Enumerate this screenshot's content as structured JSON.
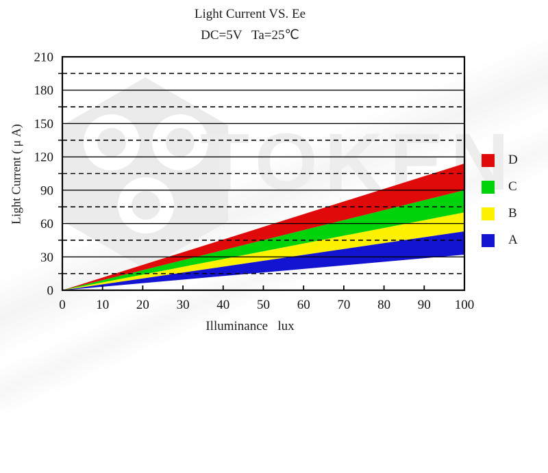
{
  "title": {
    "line1": "Light Current VS. Ee",
    "line2": "DC=5V   Ta=25℃"
  },
  "axes": {
    "x_label": "Illuminance   lux",
    "y_label": "Light Current ( μ A)"
  },
  "watermark": {
    "text": "TOKEN"
  },
  "legend": {
    "position": "right",
    "items": [
      {
        "label": "D",
        "color": "#e00a0a"
      },
      {
        "label": "C",
        "color": "#00d20c"
      },
      {
        "label": "B",
        "color": "#fff200"
      },
      {
        "label": "A",
        "color": "#1313d2"
      }
    ]
  },
  "chart_data": {
    "type": "area",
    "title": "Light Current VS. Ee",
    "subtitle": "DC=5V  Ta=25℃",
    "xlabel": "Illuminance (lux)",
    "ylabel": "Light Current (μA)",
    "xlim": [
      0,
      100
    ],
    "ylim": [
      0,
      210
    ],
    "x_ticks": [
      0,
      10,
      20,
      30,
      40,
      50,
      60,
      70,
      80,
      90,
      100
    ],
    "y_ticks": [
      0,
      30,
      60,
      90,
      120,
      150,
      180,
      210
    ],
    "y_minor_ticks": [
      15,
      45,
      75,
      105,
      135,
      165,
      195
    ],
    "grid": {
      "major_horizontal": "solid",
      "minor_horizontal": "dashed",
      "vertical": "none"
    },
    "legend_position": "right",
    "series": [
      {
        "name": "D",
        "color": "#e00a0a",
        "x": [
          0,
          100
        ],
        "lower": [
          0,
          90
        ],
        "upper": [
          0,
          114
        ]
      },
      {
        "name": "C",
        "color": "#00d20c",
        "x": [
          0,
          100
        ],
        "lower": [
          0,
          70
        ],
        "upper": [
          0,
          90
        ]
      },
      {
        "name": "B",
        "color": "#fff200",
        "x": [
          0,
          100
        ],
        "lower": [
          0,
          53
        ],
        "upper": [
          0,
          70
        ]
      },
      {
        "name": "A",
        "color": "#1313d2",
        "x": [
          0,
          100
        ],
        "lower": [
          0,
          32
        ],
        "upper": [
          0,
          53
        ]
      }
    ]
  }
}
